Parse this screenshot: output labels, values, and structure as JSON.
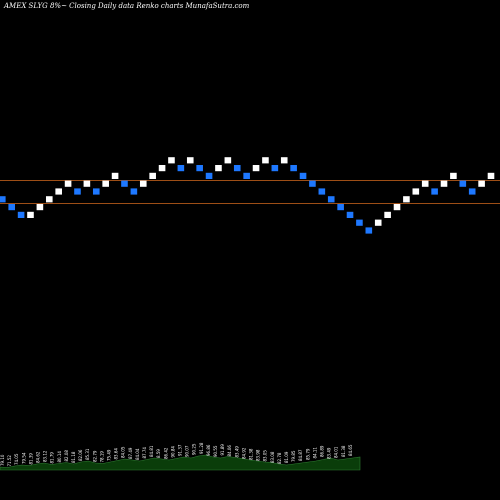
{
  "chart_data": {
    "type": "renko",
    "title": "AMEX  SLYG 8%~  Closing Daily data  Renko  charts MunafaSutra.com",
    "xlabel": "",
    "ylabel": "",
    "reference_lines": [
      {
        "label": "upper",
        "color": "#d2691e"
      },
      {
        "label": "lower",
        "color": "#d2691e"
      }
    ],
    "colors": {
      "up": "#ffffff",
      "down": "#1e78ff",
      "volume_fill": "#0a3d0a",
      "volume_stroke": "#2e7d32",
      "background": "#000000"
    },
    "bricks": [
      {
        "level": 3,
        "dir": "down"
      },
      {
        "level": 2,
        "dir": "down"
      },
      {
        "level": 1,
        "dir": "down"
      },
      {
        "level": 1,
        "dir": "up"
      },
      {
        "level": 2,
        "dir": "up"
      },
      {
        "level": 3,
        "dir": "up"
      },
      {
        "level": 4,
        "dir": "up"
      },
      {
        "level": 5,
        "dir": "up"
      },
      {
        "level": 4,
        "dir": "down"
      },
      {
        "level": 5,
        "dir": "up"
      },
      {
        "level": 4,
        "dir": "down"
      },
      {
        "level": 5,
        "dir": "up"
      },
      {
        "level": 6,
        "dir": "up"
      },
      {
        "level": 5,
        "dir": "down"
      },
      {
        "level": 4,
        "dir": "down"
      },
      {
        "level": 5,
        "dir": "up"
      },
      {
        "level": 6,
        "dir": "up"
      },
      {
        "level": 7,
        "dir": "up"
      },
      {
        "level": 8,
        "dir": "up"
      },
      {
        "level": 7,
        "dir": "down"
      },
      {
        "level": 8,
        "dir": "up"
      },
      {
        "level": 7,
        "dir": "down"
      },
      {
        "level": 6,
        "dir": "down"
      },
      {
        "level": 7,
        "dir": "up"
      },
      {
        "level": 8,
        "dir": "up"
      },
      {
        "level": 7,
        "dir": "down"
      },
      {
        "level": 6,
        "dir": "down"
      },
      {
        "level": 7,
        "dir": "up"
      },
      {
        "level": 8,
        "dir": "up"
      },
      {
        "level": 7,
        "dir": "down"
      },
      {
        "level": 8,
        "dir": "up"
      },
      {
        "level": 7,
        "dir": "down"
      },
      {
        "level": 6,
        "dir": "down"
      },
      {
        "level": 5,
        "dir": "down"
      },
      {
        "level": 4,
        "dir": "down"
      },
      {
        "level": 3,
        "dir": "down"
      },
      {
        "level": 2,
        "dir": "down"
      },
      {
        "level": 1,
        "dir": "down"
      },
      {
        "level": 0,
        "dir": "down"
      },
      {
        "level": -1,
        "dir": "down"
      },
      {
        "level": 0,
        "dir": "up"
      },
      {
        "level": 1,
        "dir": "up"
      },
      {
        "level": 2,
        "dir": "up"
      },
      {
        "level": 3,
        "dir": "up"
      },
      {
        "level": 4,
        "dir": "up"
      },
      {
        "level": 5,
        "dir": "up"
      },
      {
        "level": 4,
        "dir": "down"
      },
      {
        "level": 5,
        "dir": "up"
      },
      {
        "level": 6,
        "dir": "up"
      },
      {
        "level": 5,
        "dir": "down"
      },
      {
        "level": 4,
        "dir": "down"
      },
      {
        "level": 5,
        "dir": "up"
      },
      {
        "level": 6,
        "dir": "up"
      }
    ],
    "volume_labels": [
      "79.10",
      "71.52",
      "74.05",
      "79.54",
      "81.39",
      "84.62",
      "83.12",
      "81.79",
      "80.14",
      "82.08",
      "81.18",
      "82.06",
      "85.31",
      "82.79",
      "78.19",
      "75.49",
      "83.64",
      "84.05",
      "87.49",
      "84.04",
      "87.74",
      "84.81",
      "8.59",
      "86.42",
      "90.84",
      "91.37",
      "90.07",
      "90.25",
      "91.28",
      "96.86",
      "90.55",
      "91.89",
      "84.06",
      "83.49",
      "84.92",
      "81.38",
      "83.98",
      "83.05",
      "83.08",
      "82.78",
      "81.09",
      "79.85",
      "84.87",
      "85.79",
      "84.11",
      "86.89",
      "83.49",
      "84.01",
      "81.38",
      "84.65"
    ],
    "volume_values": [
      6,
      5,
      8,
      10,
      9,
      12,
      14,
      11,
      13,
      15,
      12,
      16,
      18,
      14,
      13,
      16,
      19,
      22,
      20,
      18,
      21,
      24,
      22,
      20,
      23,
      26,
      24,
      28,
      30,
      26,
      24,
      27,
      25,
      23,
      20,
      18,
      16,
      15,
      12,
      10,
      12,
      14,
      16,
      18,
      21,
      24,
      20,
      22,
      24,
      26
    ]
  }
}
